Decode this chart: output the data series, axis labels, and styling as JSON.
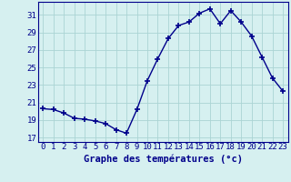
{
  "hours": [
    0,
    1,
    2,
    3,
    4,
    5,
    6,
    7,
    8,
    9,
    10,
    11,
    12,
    13,
    14,
    15,
    16,
    17,
    18,
    19,
    20,
    21,
    22,
    23
  ],
  "temperatures": [
    20.3,
    20.2,
    19.8,
    19.2,
    19.1,
    18.9,
    18.6,
    17.9,
    17.5,
    20.2,
    23.5,
    26.0,
    28.3,
    29.8,
    30.2,
    31.2,
    31.7,
    30.0,
    31.5,
    30.2,
    28.6,
    26.2,
    23.8,
    22.3
  ],
  "line_color": "#00008b",
  "marker": "+",
  "marker_size": 4,
  "bg_color": "#d6f0f0",
  "grid_color": "#aad4d4",
  "xlabel": "Graphe des températures (°c)",
  "xlabel_color": "#00008b",
  "xlabel_fontsize": 7.5,
  "tick_color": "#00008b",
  "tick_fontsize": 6.5,
  "ylim": [
    16.5,
    32.5
  ],
  "yticks": [
    17,
    19,
    21,
    23,
    25,
    27,
    29,
    31
  ],
  "xtick_labels": [
    "0",
    "1",
    "2",
    "3",
    "4",
    "5",
    "6",
    "7",
    "8",
    "9",
    "10",
    "11",
    "12",
    "13",
    "14",
    "15",
    "16",
    "17",
    "18",
    "19",
    "20",
    "21",
    "22",
    "23"
  ]
}
